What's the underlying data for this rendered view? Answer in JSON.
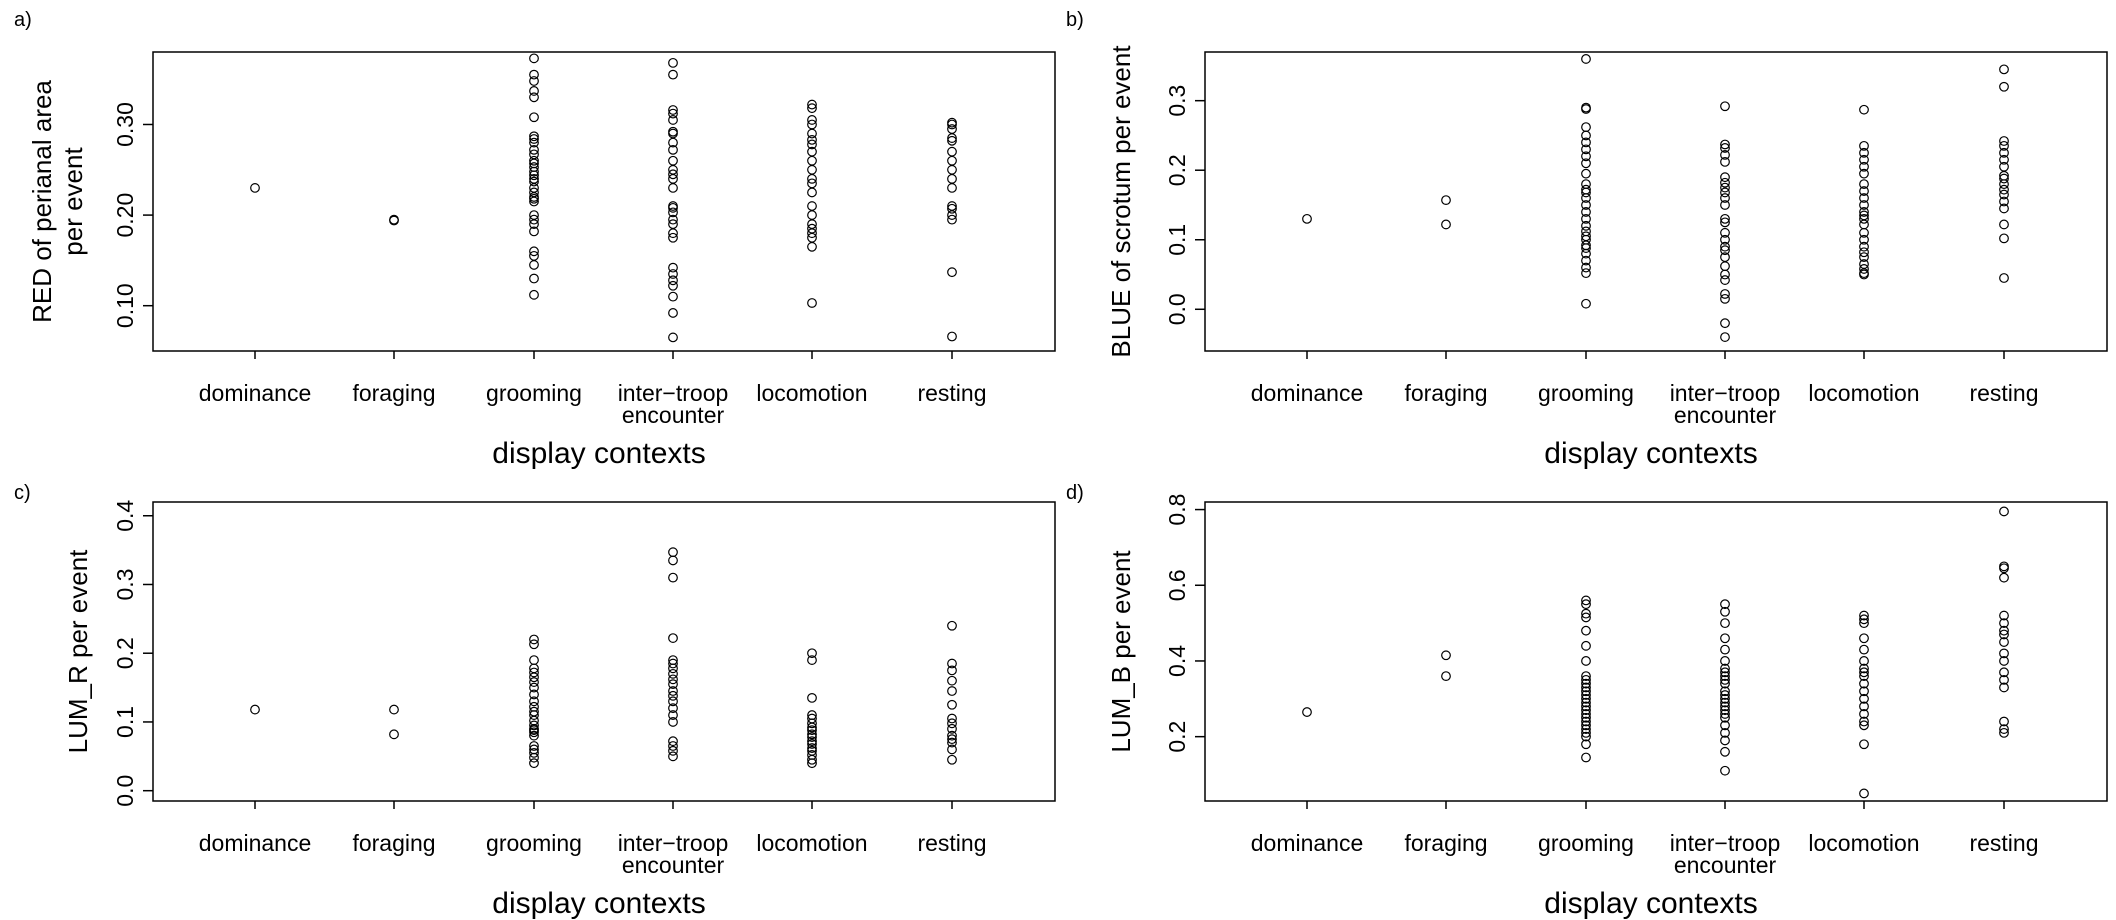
{
  "chart_data": [
    {
      "type": "scatter",
      "panel": "a)",
      "xlabel": "display contexts",
      "ylabel": [
        "RED of perianal area",
        "per event"
      ],
      "ylim": [
        0.05,
        0.38
      ],
      "yticks": [
        0.1,
        0.2,
        0.3
      ],
      "ytick_labels": [
        "0.10",
        "0.20",
        "0.30"
      ],
      "categories": [
        [
          "dominance"
        ],
        [
          "foraging"
        ],
        [
          "grooming"
        ],
        [
          "inter−troop",
          "encounter"
        ],
        [
          "locomotion"
        ],
        [
          "resting"
        ]
      ],
      "grid": false,
      "series": [
        {
          "values": [
            [
              0.23
            ],
            [
              0.195,
              0.194
            ],
            [
              0.373,
              0.355,
              0.348,
              0.337,
              0.33,
              0.308,
              0.287,
              0.284,
              0.28,
              0.272,
              0.267,
              0.26,
              0.257,
              0.253,
              0.248,
              0.244,
              0.24,
              0.237,
              0.23,
              0.225,
              0.22,
              0.218,
              0.215,
              0.2,
              0.195,
              0.19,
              0.182,
              0.16,
              0.155,
              0.145,
              0.13,
              0.112
            ],
            [
              0.368,
              0.355,
              0.316,
              0.312,
              0.305,
              0.292,
              0.29,
              0.28,
              0.272,
              0.26,
              0.25,
              0.245,
              0.24,
              0.23,
              0.21,
              0.208,
              0.203,
              0.195,
              0.19,
              0.18,
              0.175,
              0.142,
              0.135,
              0.128,
              0.122,
              0.11,
              0.092,
              0.065
            ],
            [
              0.322,
              0.318,
              0.305,
              0.3,
              0.29,
              0.283,
              0.278,
              0.27,
              0.26,
              0.25,
              0.24,
              0.235,
              0.225,
              0.21,
              0.2,
              0.19,
              0.185,
              0.18,
              0.175,
              0.165,
              0.103
            ],
            [
              0.302,
              0.3,
              0.295,
              0.285,
              0.282,
              0.27,
              0.26,
              0.25,
              0.24,
              0.23,
              0.21,
              0.207,
              0.2,
              0.195,
              0.137,
              0.066
            ]
          ]
        }
      ]
    },
    {
      "type": "scatter",
      "panel": "b)",
      "xlabel": "display contexts",
      "ylabel": [
        "BLUE of scrotum per event"
      ],
      "ylim": [
        -0.06,
        0.37
      ],
      "yticks": [
        0.0,
        0.1,
        0.2,
        0.3
      ],
      "ytick_labels": [
        "0.0",
        "0.1",
        "0.2",
        "0.3"
      ],
      "categories": [
        [
          "dominance"
        ],
        [
          "foraging"
        ],
        [
          "grooming"
        ],
        [
          "inter−troop",
          "encounter"
        ],
        [
          "locomotion"
        ],
        [
          "resting"
        ]
      ],
      "grid": false,
      "series": [
        {
          "values": [
            [
              0.13
            ],
            [
              0.157,
              0.122
            ],
            [
              0.36,
              0.29,
              0.288,
              0.262,
              0.25,
              0.24,
              0.23,
              0.22,
              0.21,
              0.195,
              0.18,
              0.172,
              0.168,
              0.16,
              0.15,
              0.14,
              0.13,
              0.12,
              0.112,
              0.105,
              0.1,
              0.092,
              0.088,
              0.08,
              0.07,
              0.06,
              0.052,
              0.008
            ],
            [
              0.292,
              0.237,
              0.232,
              0.222,
              0.212,
              0.19,
              0.182,
              0.175,
              0.168,
              0.16,
              0.15,
              0.13,
              0.125,
              0.11,
              0.1,
              0.09,
              0.085,
              0.075,
              0.062,
              0.05,
              0.042,
              0.022,
              0.015,
              -0.02,
              -0.04
            ],
            [
              0.287,
              0.235,
              0.225,
              0.215,
              0.205,
              0.195,
              0.18,
              0.17,
              0.16,
              0.15,
              0.14,
              0.135,
              0.13,
              0.122,
              0.11,
              0.1,
              0.09,
              0.082,
              0.075,
              0.065,
              0.058,
              0.052,
              0.05
            ],
            [
              0.345,
              0.32,
              0.242,
              0.235,
              0.225,
              0.215,
              0.205,
              0.192,
              0.188,
              0.18,
              0.172,
              0.165,
              0.155,
              0.145,
              0.122,
              0.102,
              0.045
            ]
          ]
        }
      ]
    },
    {
      "type": "scatter",
      "panel": "c)",
      "xlabel": "display contexts",
      "ylabel": [
        "LUM_R per event"
      ],
      "ylim": [
        -0.015,
        0.42
      ],
      "yticks": [
        0.0,
        0.1,
        0.2,
        0.3,
        0.4
      ],
      "ytick_labels": [
        "0.0",
        "0.1",
        "0.2",
        "0.3",
        "0.4"
      ],
      "categories": [
        [
          "dominance"
        ],
        [
          "foraging"
        ],
        [
          "grooming"
        ],
        [
          "inter−troop",
          "encounter"
        ],
        [
          "locomotion"
        ],
        [
          "resting"
        ]
      ],
      "grid": false,
      "series": [
        {
          "values": [
            [
              0.118
            ],
            [
              0.118,
              0.082
            ],
            [
              0.22,
              0.213,
              0.19,
              0.178,
              0.172,
              0.165,
              0.158,
              0.15,
              0.14,
              0.13,
              0.122,
              0.115,
              0.11,
              0.102,
              0.095,
              0.09,
              0.088,
              0.085,
              0.08,
              0.065,
              0.06,
              0.055,
              0.048,
              0.04
            ],
            [
              0.347,
              0.335,
              0.31,
              0.222,
              0.19,
              0.185,
              0.178,
              0.17,
              0.162,
              0.155,
              0.145,
              0.138,
              0.13,
              0.12,
              0.11,
              0.1,
              0.072,
              0.065,
              0.058,
              0.05
            ],
            [
              0.2,
              0.19,
              0.135,
              0.11,
              0.105,
              0.098,
              0.092,
              0.088,
              0.082,
              0.078,
              0.072,
              0.068,
              0.062,
              0.058,
              0.052,
              0.045,
              0.04
            ],
            [
              0.24,
              0.185,
              0.175,
              0.16,
              0.145,
              0.125,
              0.105,
              0.098,
              0.09,
              0.08,
              0.075,
              0.07,
              0.06,
              0.045
            ]
          ]
        }
      ]
    },
    {
      "type": "scatter",
      "panel": "d)",
      "xlabel": "display contexts",
      "ylabel": [
        "LUM_B per event"
      ],
      "ylim": [
        0.03,
        0.82
      ],
      "yticks": [
        0.2,
        0.4,
        0.6,
        0.8
      ],
      "ytick_labels": [
        "0.2",
        "0.4",
        "0.6",
        "0.8"
      ],
      "categories": [
        [
          "dominance"
        ],
        [
          "foraging"
        ],
        [
          "grooming"
        ],
        [
          "inter−troop",
          "encounter"
        ],
        [
          "locomotion"
        ],
        [
          "resting"
        ]
      ],
      "grid": false,
      "series": [
        {
          "values": [
            [
              0.265
            ],
            [
              0.415,
              0.36
            ],
            [
              0.56,
              0.55,
              0.525,
              0.515,
              0.48,
              0.44,
              0.4,
              0.36,
              0.35,
              0.34,
              0.33,
              0.32,
              0.31,
              0.3,
              0.29,
              0.28,
              0.27,
              0.26,
              0.25,
              0.24,
              0.23,
              0.22,
              0.21,
              0.2,
              0.18,
              0.145
            ],
            [
              0.55,
              0.53,
              0.5,
              0.46,
              0.43,
              0.4,
              0.38,
              0.37,
              0.36,
              0.35,
              0.34,
              0.32,
              0.31,
              0.3,
              0.29,
              0.28,
              0.27,
              0.26,
              0.25,
              0.23,
              0.21,
              0.19,
              0.16,
              0.11
            ],
            [
              0.52,
              0.51,
              0.5,
              0.46,
              0.43,
              0.4,
              0.38,
              0.37,
              0.36,
              0.34,
              0.32,
              0.3,
              0.28,
              0.26,
              0.24,
              0.23,
              0.18,
              0.05
            ],
            [
              0.795,
              0.65,
              0.645,
              0.62,
              0.52,
              0.5,
              0.48,
              0.47,
              0.45,
              0.42,
              0.4,
              0.37,
              0.35,
              0.33,
              0.24,
              0.22,
              0.21
            ]
          ]
        }
      ]
    }
  ]
}
